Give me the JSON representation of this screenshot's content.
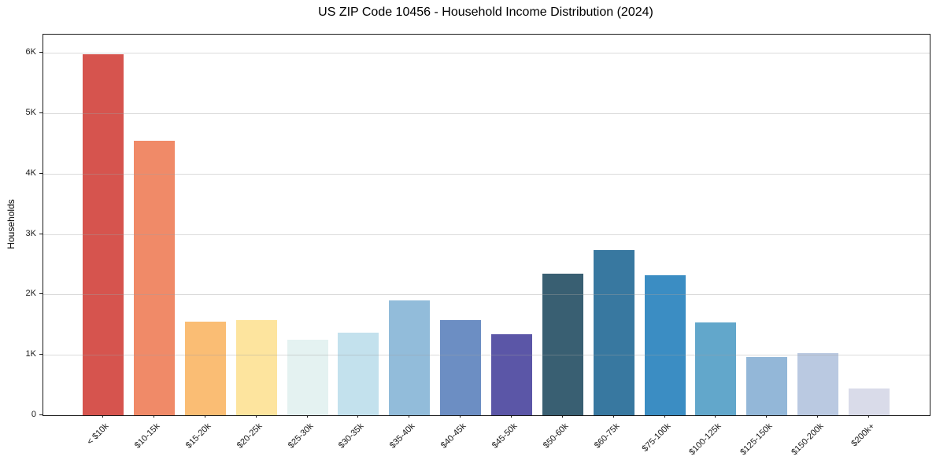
{
  "chart_data": {
    "type": "bar",
    "title": "US ZIP Code 10456 - Household Income Distribution (2024)",
    "xlabel": "",
    "ylabel": "Households",
    "categories": [
      "< $10k",
      "$10-15k",
      "$15-20k",
      "$20-25k",
      "$25-30k",
      "$30-35k",
      "$35-40k",
      "$40-45k",
      "$45-50k",
      "$50-60k",
      "$60-75k",
      "$75-100k",
      "$100-125k",
      "$125-150k",
      "$150-200k",
      "$200k+"
    ],
    "values": [
      5970,
      4540,
      1550,
      1580,
      1250,
      1370,
      1900,
      1570,
      1340,
      2350,
      2730,
      2320,
      1540,
      970,
      1030,
      440
    ],
    "bar_colors": [
      "#d6544e",
      "#f08a68",
      "#fabd74",
      "#fde49e",
      "#e4f2f1",
      "#c3e1ed",
      "#92bcda",
      "#6c8ec3",
      "#5b56a7",
      "#395f72",
      "#3878a0",
      "#3b8dc3",
      "#62a7cb",
      "#93b7d8",
      "#bac9e1",
      "#d9dbe9"
    ],
    "ylim": [
      0,
      6300
    ],
    "ytick_values": [
      0,
      1000,
      2000,
      3000,
      4000,
      5000,
      6000
    ],
    "ytick_labels": [
      "0",
      "1K",
      "2K",
      "3K",
      "4K",
      "5K",
      "6K"
    ],
    "grid": "horizontal",
    "legend": "none",
    "spine_color": "#1a1a1a",
    "background": "#ffffff"
  }
}
